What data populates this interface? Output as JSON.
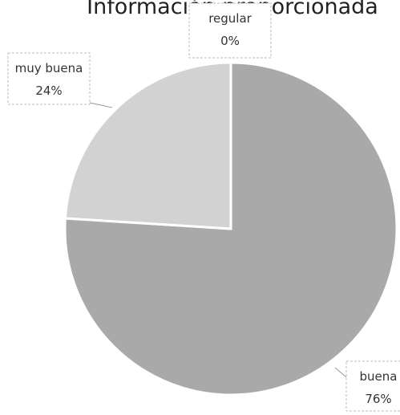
{
  "chart_data": {
    "type": "pie",
    "title": "Información proporcionada",
    "categories": [
      "buena",
      "muy buena",
      "regular"
    ],
    "values": [
      76,
      24,
      0
    ],
    "value_labels": [
      "76%",
      "24%",
      "0%"
    ],
    "colors": [
      "#a9a9a9",
      "#d2d2d2",
      "#8f8f8f"
    ]
  }
}
